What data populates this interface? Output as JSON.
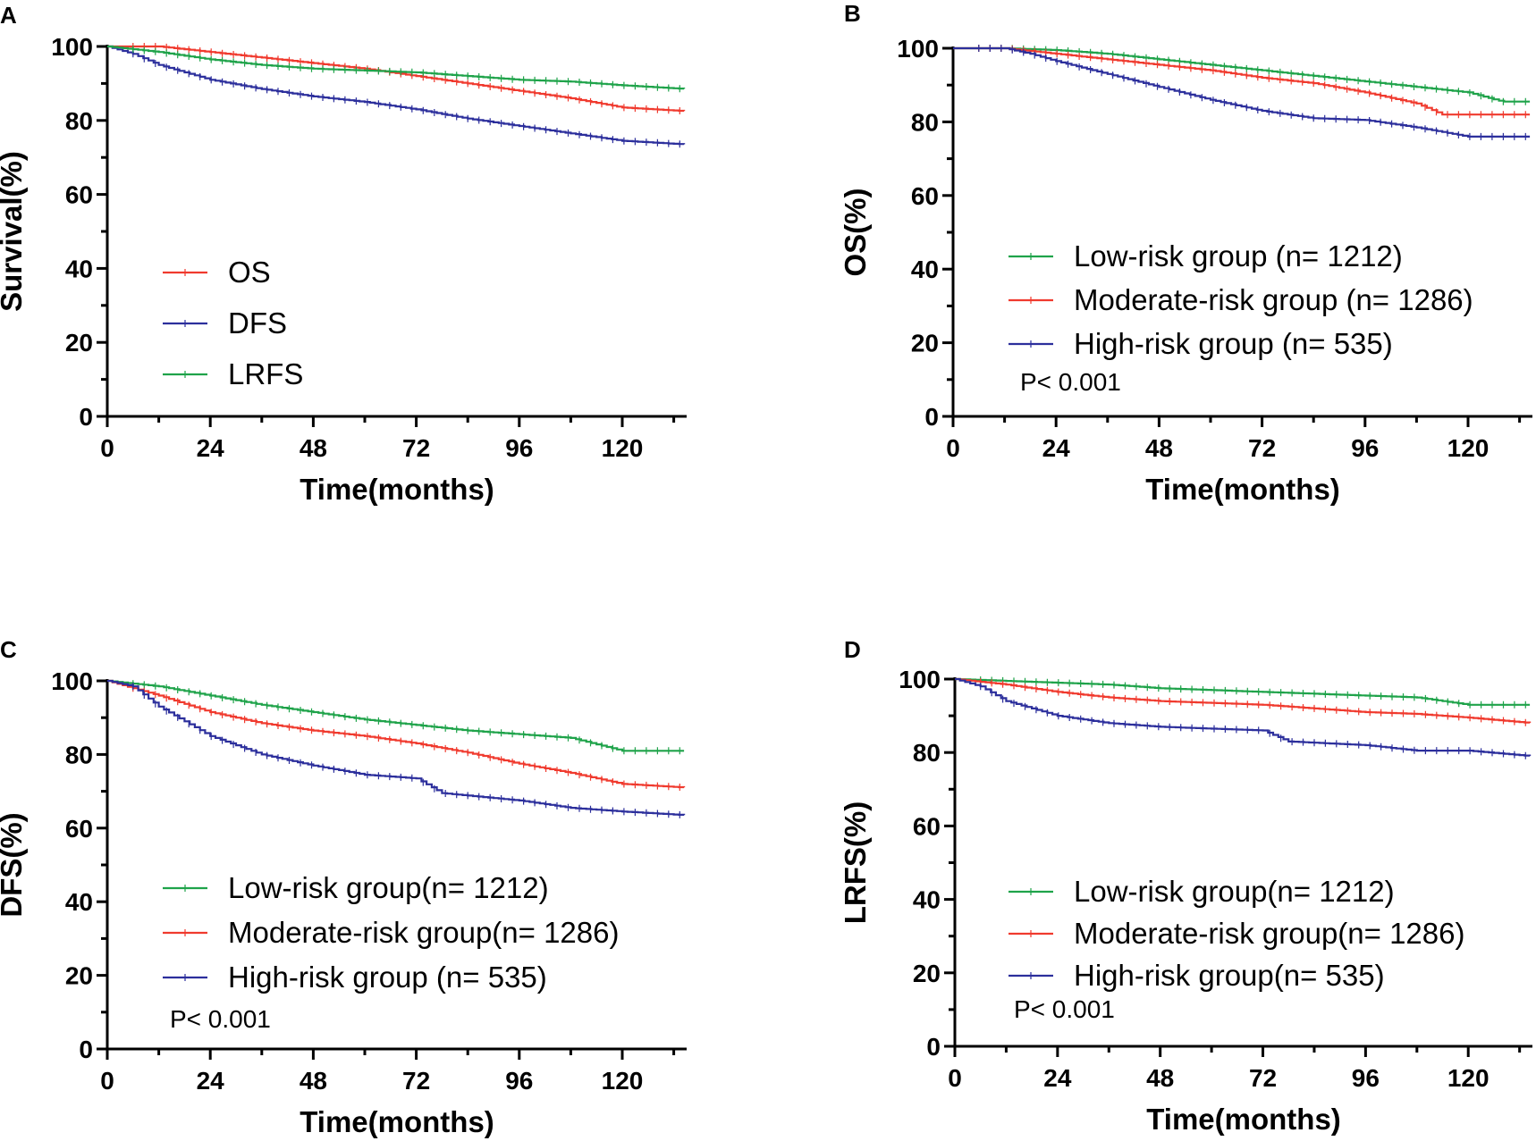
{
  "figure_labels": [
    "A",
    "B",
    "C",
    "D"
  ],
  "chart_data": [
    {
      "panel": "A",
      "type": "line",
      "title": "",
      "xlabel": "Time(months)",
      "ylabel": "Survival(%)",
      "xlim": [
        0,
        135
      ],
      "ylim": [
        0,
        100
      ],
      "xticks": [
        0,
        24,
        48,
        72,
        96,
        120
      ],
      "yticks": [
        0,
        20,
        40,
        60,
        80,
        100
      ],
      "legend": [
        {
          "label": "OS",
          "color": "#f03a2e"
        },
        {
          "label": "DFS",
          "color": "#2c2f9c"
        },
        {
          "label": "LRFS",
          "color": "#1fa34a"
        }
      ],
      "p_value": "",
      "series": [
        {
          "name": "OS",
          "color": "#f03a2e",
          "x": [
            0,
            12,
            24,
            36,
            48,
            60,
            72,
            84,
            96,
            108,
            120,
            135
          ],
          "y": [
            100,
            100,
            98.5,
            97,
            95.5,
            94,
            92,
            90,
            88,
            86,
            83.5,
            82.5
          ]
        },
        {
          "name": "DFS",
          "color": "#2c2f9c",
          "x": [
            0,
            6,
            12,
            24,
            36,
            48,
            60,
            72,
            84,
            96,
            108,
            120,
            135
          ],
          "y": [
            100,
            98,
            95,
            91,
            88.5,
            86.5,
            85,
            83,
            80.5,
            78.5,
            76.5,
            74.5,
            73.5
          ]
        },
        {
          "name": "LRFS",
          "color": "#1fa34a",
          "x": [
            0,
            12,
            24,
            36,
            48,
            60,
            72,
            84,
            96,
            108,
            120,
            135
          ],
          "y": [
            100,
            98.5,
            96.5,
            95,
            94,
            93.5,
            93,
            92,
            91,
            90.5,
            89.5,
            88.5
          ]
        }
      ]
    },
    {
      "panel": "B",
      "type": "line",
      "title": "",
      "xlabel": "Time(months)",
      "ylabel": "OS(%)",
      "xlim": [
        0,
        135
      ],
      "ylim": [
        0,
        100
      ],
      "xticks": [
        0,
        24,
        48,
        72,
        96,
        120
      ],
      "yticks": [
        0,
        20,
        40,
        60,
        80,
        100
      ],
      "legend": [
        {
          "label": "Low-risk group (n= 1212)",
          "color": "#1fa34a"
        },
        {
          "label": "Moderate-risk group (n= 1286)",
          "color": "#f03a2e"
        },
        {
          "label": "High-risk group (n= 535)",
          "color": "#2c2f9c"
        }
      ],
      "p_value": "P< 0.001",
      "series": [
        {
          "name": "Low-risk group (n= 1212)",
          "color": "#1fa34a",
          "x": [
            0,
            12,
            24,
            36,
            48,
            60,
            72,
            84,
            96,
            108,
            120,
            128,
            135
          ],
          "y": [
            100,
            100,
            99.5,
            98.5,
            97,
            95.5,
            94,
            92.5,
            91,
            89.5,
            88,
            85.5,
            85.5
          ]
        },
        {
          "name": "Moderate-risk group (n= 1286)",
          "color": "#f03a2e",
          "x": [
            0,
            12,
            24,
            36,
            48,
            60,
            72,
            84,
            96,
            108,
            114,
            135
          ],
          "y": [
            100,
            100,
            98.5,
            97,
            95.5,
            94,
            92,
            90.5,
            88,
            85,
            82,
            82
          ]
        },
        {
          "name": "High-risk group (n= 535)",
          "color": "#2c2f9c",
          "x": [
            0,
            12,
            18,
            24,
            36,
            48,
            60,
            72,
            84,
            96,
            108,
            120,
            135
          ],
          "y": [
            100,
            100,
            98.5,
            96.5,
            93,
            89.5,
            86,
            83,
            81,
            80.5,
            78.5,
            76,
            76
          ]
        }
      ]
    },
    {
      "panel": "C",
      "type": "line",
      "title": "",
      "xlabel": "Time(months)",
      "ylabel": "DFS(%)",
      "xlim": [
        0,
        135
      ],
      "ylim": [
        0,
        100
      ],
      "xticks": [
        0,
        24,
        48,
        72,
        96,
        120
      ],
      "yticks": [
        0,
        20,
        40,
        60,
        80,
        100
      ],
      "legend": [
        {
          "label": "Low-risk group(n= 1212)",
          "color": "#1fa34a"
        },
        {
          "label": "Moderate-risk group(n= 1286)",
          "color": "#f03a2e"
        },
        {
          "label": "High-risk group (n= 535)",
          "color": "#2c2f9c"
        }
      ],
      "p_value": "P< 0.001",
      "series": [
        {
          "name": "Low-risk group(n= 1212)",
          "color": "#1fa34a",
          "x": [
            0,
            12,
            24,
            36,
            48,
            60,
            72,
            84,
            96,
            108,
            120,
            135
          ],
          "y": [
            100,
            98.5,
            96,
            93.5,
            91.5,
            89.5,
            88,
            86.5,
            85.5,
            84.5,
            81,
            81
          ]
        },
        {
          "name": "Moderate-risk group(n= 1286)",
          "color": "#f03a2e",
          "x": [
            0,
            12,
            24,
            36,
            48,
            60,
            72,
            84,
            96,
            108,
            120,
            135
          ],
          "y": [
            100,
            96,
            91.5,
            88.5,
            86.5,
            85,
            83,
            80.5,
            77.5,
            75,
            72,
            71
          ]
        },
        {
          "name": "High-risk group (n= 535)",
          "color": "#2c2f9c",
          "x": [
            0,
            6,
            12,
            24,
            36,
            48,
            60,
            72,
            78,
            96,
            108,
            120,
            135
          ],
          "y": [
            100,
            98.5,
            93,
            85,
            80,
            77,
            74.5,
            73.5,
            69.5,
            67.5,
            65.5,
            64.5,
            63.5
          ]
        }
      ]
    },
    {
      "panel": "D",
      "type": "line",
      "title": "",
      "xlabel": "Time(months)",
      "ylabel": "LRFS(%)",
      "xlim": [
        0,
        135
      ],
      "ylim": [
        0,
        100
      ],
      "xticks": [
        0,
        24,
        48,
        72,
        96,
        120
      ],
      "yticks": [
        0,
        20,
        40,
        60,
        80,
        100
      ],
      "legend": [
        {
          "label": "Low-risk group(n= 1212)",
          "color": "#1fa34a"
        },
        {
          "label": "Moderate-risk group(n= 1286)",
          "color": "#f03a2e"
        },
        {
          "label": "High-risk group(n= 535)",
          "color": "#2c2f9c"
        }
      ],
      "p_value": "P< 0.001",
      "series": [
        {
          "name": "Low-risk group(n= 1212)",
          "color": "#1fa34a",
          "x": [
            0,
            12,
            24,
            36,
            48,
            60,
            72,
            84,
            96,
            108,
            120,
            135
          ],
          "y": [
            100,
            99.5,
            99,
            98.5,
            97.5,
            97,
            96.5,
            96,
            95.5,
            95,
            93,
            93
          ]
        },
        {
          "name": "Moderate-risk group(n= 1286)",
          "color": "#f03a2e",
          "x": [
            0,
            12,
            24,
            36,
            48,
            60,
            72,
            84,
            96,
            108,
            120,
            135
          ],
          "y": [
            100,
            98.5,
            96.5,
            95,
            94,
            93.5,
            93,
            92,
            91,
            90.5,
            89.5,
            88
          ]
        },
        {
          "name": "High-risk group(n= 535)",
          "color": "#2c2f9c",
          "x": [
            0,
            6,
            12,
            24,
            36,
            48,
            60,
            72,
            78,
            96,
            108,
            120,
            135
          ],
          "y": [
            100,
            98,
            94,
            90,
            88,
            87,
            86.5,
            86,
            83,
            82,
            80.5,
            80.5,
            79
          ]
        }
      ]
    }
  ]
}
